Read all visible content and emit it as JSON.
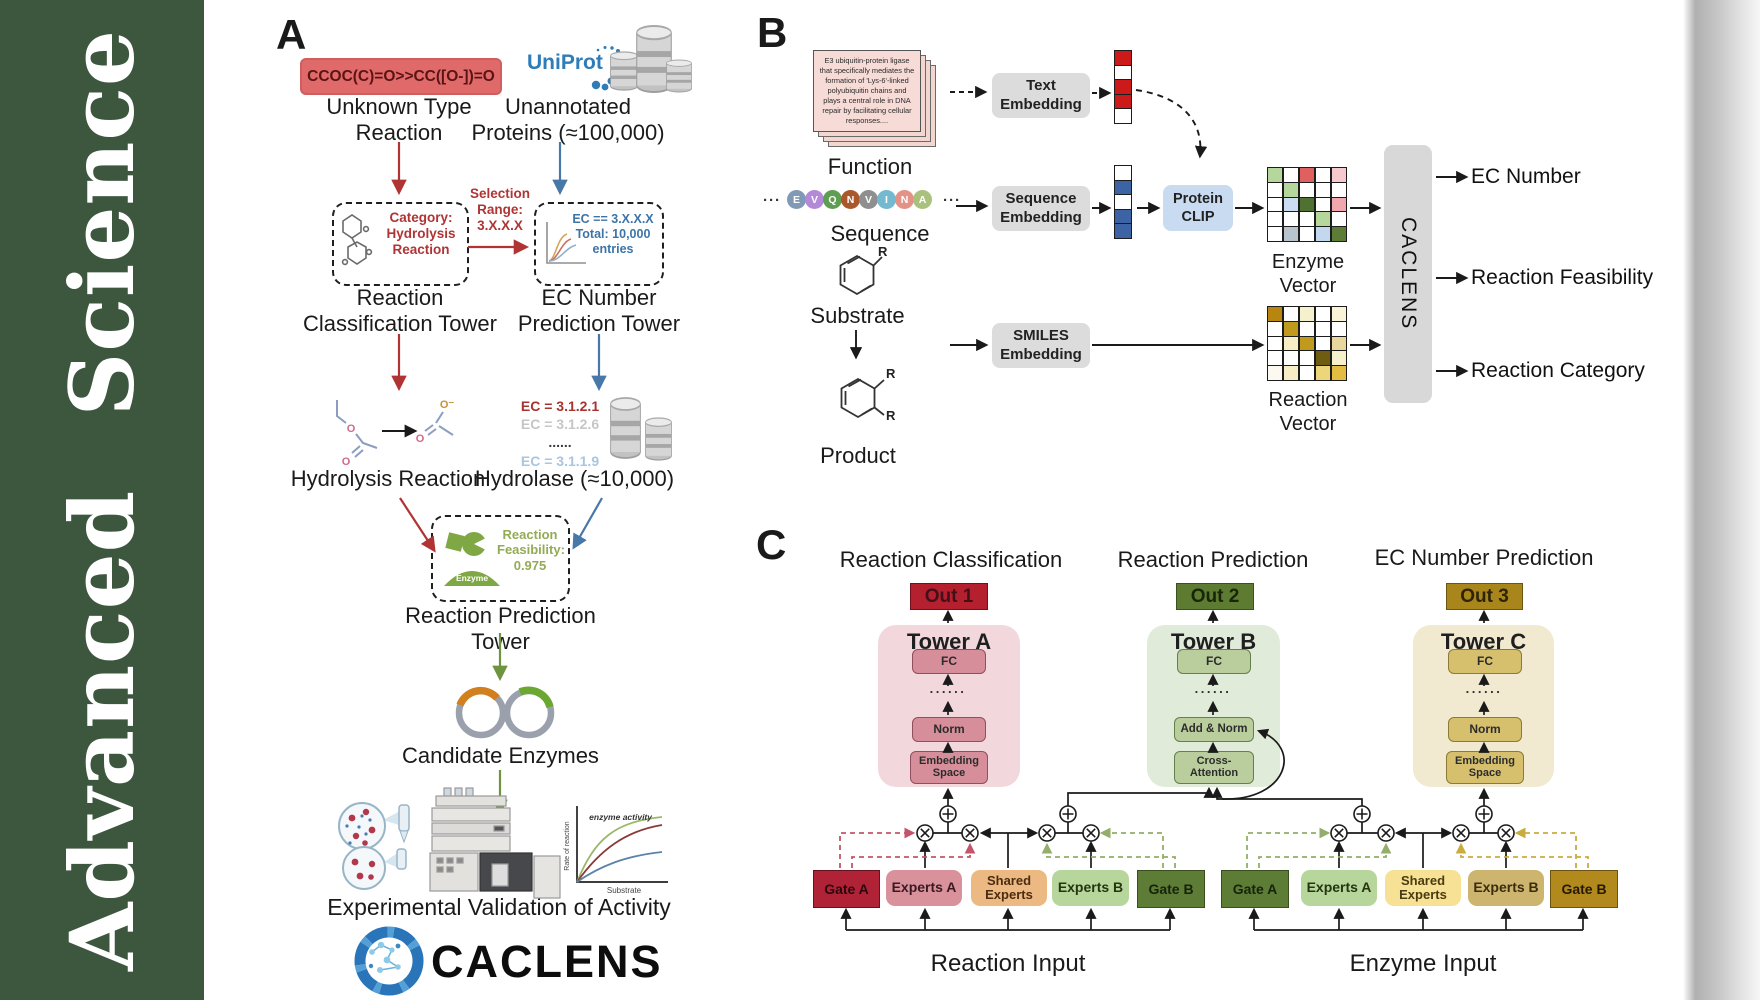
{
  "journal": {
    "title": "Advanced Science"
  },
  "accent_colors": {
    "sidebar_green": "#3d573f",
    "arrow_red": "#b03434",
    "arrow_blue": "#4878a8",
    "arrow_olive": "#6f9440",
    "uniprot_blue": "#2e7cb8",
    "smiles_box_red": "#e06a6a",
    "protein_clip_blue": "#c8dbf0",
    "embedding_gray": "#dcdcdc"
  },
  "panel_a": {
    "label": "A",
    "smiles_reaction": "CCOC(C)=O>>CC([O-])=O",
    "unknown_type": "Unknown Type\nReaction",
    "uniprot": "UniProt",
    "unannotated": "Unannotated\nProteins (≈100,000)",
    "selection": "Selection\nRange:\n3.X.X.X",
    "category_box": "Category:\nHydrolysis\nReaction",
    "ec_box": "EC == 3.X.X.X\nTotal: 10,000\nentries",
    "classification_tower": "Reaction\nClassification Tower",
    "ec_tower": "EC Number\nPrediction Tower",
    "hydrolysis": "Hydrolysis Reaction",
    "hydrolase": "Hydrolase (≈10,000)",
    "ec_list": [
      {
        "t": "EC = 3.1.2.1",
        "fg": "#a8322e"
      },
      {
        "t": "EC = 3.1.2.6",
        "fg": "#c6c6c6"
      },
      {
        "t": "......",
        "fg": "#3a3a3a"
      },
      {
        "t": "EC = 3.1.1.9",
        "fg": "#a9c6e0"
      }
    ],
    "enzyme_label": "Enzyme",
    "feasibility": "Reaction\nFeasibility:\n0.975",
    "prediction_tower": "Reaction Prediction Tower",
    "candidate_enzymes": "Candidate Enzymes",
    "validation": "Experimental Validation of Activity",
    "graph": {
      "curve_label": "enzyme activity",
      "xlabel": "Substrate",
      "ylabel": "Rate of reaction"
    },
    "molecule": {
      "o": "O",
      "o_minus": "O⁻"
    },
    "brand": "CACLENS"
  },
  "panel_b": {
    "label": "B",
    "function_card": "E3 ubiquitin-protein ligase\nthat specifically mediates the\nformation of 'Lys-6'-linked\npolyubiquitin chains and\nplays a central role in DNA\nrepair by facilitating cellular\nresponses....",
    "function": "Function",
    "sequence": "Sequence",
    "substrate": "Substrate",
    "product": "Product",
    "r_group": "R",
    "ellipsis": "···",
    "tokens": [
      {
        "t": "E",
        "bg": "#8299b5"
      },
      {
        "t": "V",
        "bg": "#b48ad8"
      },
      {
        "t": "Q",
        "bg": "#5f9e52"
      },
      {
        "t": "N",
        "bg": "#a9572b"
      },
      {
        "t": "V",
        "bg": "#8f8f8f"
      },
      {
        "t": "I",
        "bg": "#74b9cf"
      },
      {
        "t": "N",
        "bg": "#e29286"
      },
      {
        "t": "A",
        "bg": "#a9c17d"
      }
    ],
    "text_embedding": "Text\nEmbedding",
    "sequence_embedding": "Sequence\nEmbedding",
    "smiles_embedding": "SMILES\nEmbedding",
    "protein_clip": "Protein\nCLIP",
    "text_vector": [
      "#cc1a1a",
      "#ffffff",
      "#cc1a1a",
      "#cc1a1a",
      "#ffffff"
    ],
    "sequence_vector": [
      "#ffffff",
      "#3c64a4",
      "#ffffff",
      "#3c64a4",
      "#3c64a4"
    ],
    "enzyme_vector_label": "Enzyme Vector",
    "reaction_vector_label": "Reaction Vector",
    "enzyme_grid": [
      "#b5d79b",
      "#ffffff",
      "#e0605f",
      "#ffffff",
      "#f6c9cf",
      "#ffffff",
      "#b5d79b",
      "#ffffff",
      "#ffffff",
      "#ffffff",
      "#ffffff",
      "#ccddf1",
      "#4f7233",
      "#ffffff",
      "#f0a7ad",
      "#ffffff",
      "#ffffff",
      "#ffffff",
      "#b5d79b",
      "#ffffff",
      "#ffffff",
      "#b7c3cd",
      "#ffffff",
      "#c3d8ee",
      "#5d7c36"
    ],
    "reaction_grid": [
      "#b8860f",
      "#ffffff",
      "#f7f0cd",
      "#ffffff",
      "#f9f3d8",
      "#ffffff",
      "#c09a1c",
      "#ffffff",
      "#ffffff",
      "#ffffff",
      "#ffffff",
      "#f7eec6",
      "#c09a1c",
      "#ffffff",
      "#e8d69d",
      "#ffffff",
      "#ffffff",
      "#ffffff",
      "#6e5d11",
      "#f7f0cd",
      "#fbf9f2",
      "#f7eec6",
      "#ffffff",
      "#edd57c",
      "#e3bc42"
    ],
    "caclens_bar": "CACLENS",
    "outputs": [
      "EC Number",
      "Reaction Feasibility",
      "Reaction Category"
    ]
  },
  "panel_c": {
    "label": "C",
    "headers": [
      "Reaction Classification",
      "Reaction Prediction",
      "EC Number Prediction"
    ],
    "outs": [
      "Out 1",
      "Out 2",
      "Out 3"
    ],
    "fc": "FC",
    "dots": "......",
    "tower_a": {
      "title": "Tower A",
      "mid": "Norm",
      "bottom": "Embedding\nSpace"
    },
    "tower_b": {
      "title": "Tower B",
      "mid": "Add & Norm",
      "bottom": "Cross-\nAttention"
    },
    "tower_c": {
      "title": "Tower C",
      "mid": "Norm",
      "bottom": "Embedding\nSpace"
    },
    "reaction_group": {
      "gate_a": "Gate A",
      "experts_a": "Experts A",
      "shared": "Shared\nExperts",
      "experts_b": "Experts B",
      "gate_b": "Gate B",
      "input": "Reaction Input"
    },
    "enzyme_group": {
      "gate_a": "Gate A",
      "experts_a": "Experts A",
      "shared": "Shared\nExperts",
      "experts_b": "Experts B",
      "gate_b": "Gate B",
      "input": "Enzyme Input"
    }
  }
}
